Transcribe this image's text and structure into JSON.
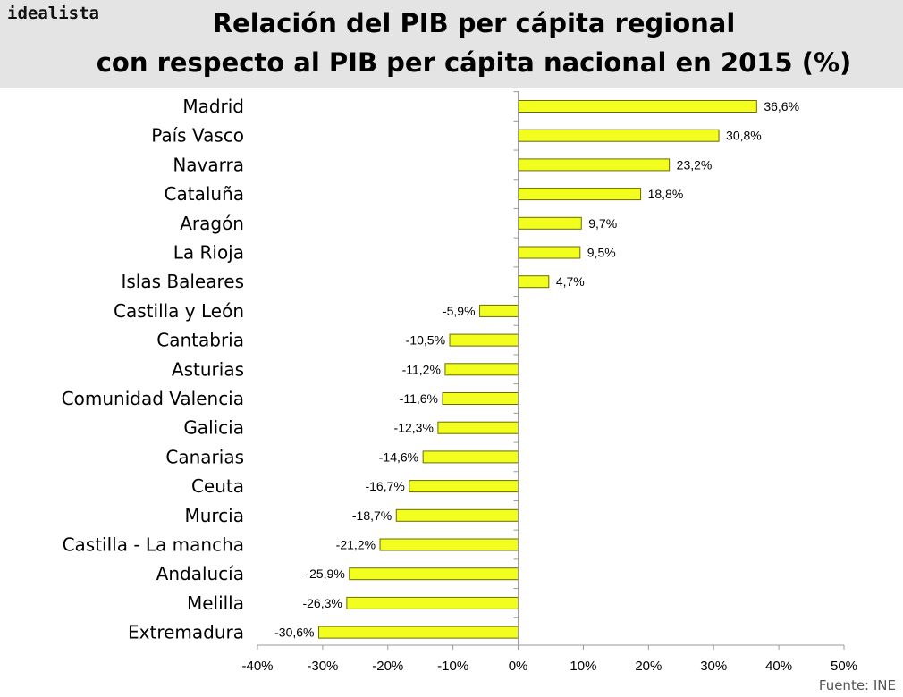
{
  "brand": "idealista",
  "title_line1": "Relación del PIB per cápita regional",
  "title_line2": "con respecto al PIB per cápita nacional en 2015 (%)",
  "source": "Fuente: INE",
  "chart_data": {
    "type": "bar",
    "orientation": "horizontal",
    "title": "Relación del PIB per cápita regional con respecto al PIB per cápita nacional en 2015 (%)",
    "categories": [
      "Madrid",
      "País Vasco",
      "Navarra",
      "Cataluña",
      "Aragón",
      "La Rioja",
      "Islas Baleares",
      "Castilla y León",
      "Cantabria",
      "Asturias",
      "Comunidad Valencia",
      "Galicia",
      "Canarias",
      "Ceuta",
      "Murcia",
      "Castilla - La mancha",
      "Andalucía",
      "Melilla",
      "Extremadura"
    ],
    "values": [
      36.6,
      30.8,
      23.2,
      18.8,
      9.7,
      9.5,
      4.7,
      -5.9,
      -10.5,
      -11.2,
      -11.6,
      -12.3,
      -14.6,
      -16.7,
      -18.7,
      -21.2,
      -25.9,
      -26.3,
      -30.6
    ],
    "value_labels": [
      "36,6%",
      "30,8%",
      "23,2%",
      "18,8%",
      "9,7%",
      "9,5%",
      "4,7%",
      "-5,9%",
      "-10,5%",
      "-11,2%",
      "-11,6%",
      "-12,3%",
      "-14,6%",
      "-16,7%",
      "-18,7%",
      "-21,2%",
      "-25,9%",
      "-26,3%",
      "-30,6%"
    ],
    "xlim": [
      -40,
      50
    ],
    "xticks": [
      -40,
      -30,
      -20,
      -10,
      0,
      10,
      20,
      30,
      40,
      50
    ],
    "xtick_labels": [
      "-40%",
      "-30%",
      "-20%",
      "-10%",
      "0%",
      "10%",
      "20%",
      "30%",
      "40%",
      "50%"
    ],
    "xlabel": "",
    "ylabel": "",
    "grid": false,
    "legend": "none",
    "bar_color": "#f2ff1e",
    "bar_edge_color": "#6b6b00"
  }
}
